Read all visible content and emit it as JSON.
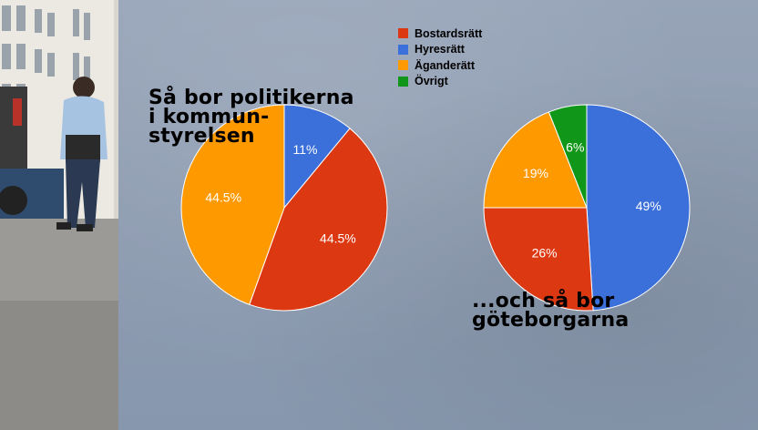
{
  "chart_data": [
    {
      "type": "pie",
      "title": "Så bor politikerna\ni kommun-\nstyrelsen",
      "slices": [
        {
          "name": "Hyresrätt",
          "value": 11,
          "label": "11%",
          "color": "#3b6fd9"
        },
        {
          "name": "Bostardsrätt",
          "value": 44.5,
          "label": "44.5%",
          "color": "#dc3912"
        },
        {
          "name": "Äganderätt",
          "value": 44.5,
          "label": "44.5%",
          "color": "#ff9900"
        }
      ]
    },
    {
      "type": "pie",
      "title": "...och så bor\ngöteborgarna",
      "slices": [
        {
          "name": "Hyresrätt",
          "value": 49,
          "label": "49%",
          "color": "#3b6fd9"
        },
        {
          "name": "Bostardsrätt",
          "value": 26,
          "label": "26%",
          "color": "#dc3912"
        },
        {
          "name": "Äganderätt",
          "value": 19,
          "label": "19%",
          "color": "#ff9900"
        },
        {
          "name": "Övrigt",
          "value": 6,
          "label": "6%",
          "color": "#109618"
        }
      ]
    }
  ],
  "legend": {
    "placement": "top-center",
    "items": [
      {
        "label": "Bostardsrätt",
        "color": "#dc3912"
      },
      {
        "label": "Hyresrätt",
        "color": "#3b6fd9"
      },
      {
        "label": "Äganderätt",
        "color": "#ff9900"
      },
      {
        "label": "Övrigt",
        "color": "#109618"
      }
    ]
  }
}
